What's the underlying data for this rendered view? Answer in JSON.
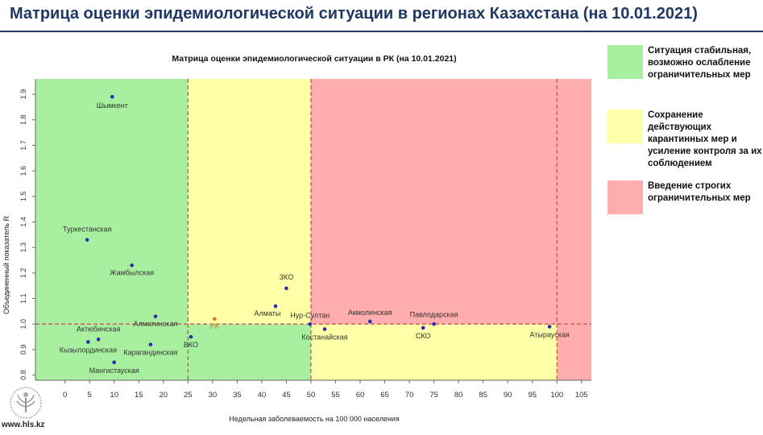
{
  "slide": {
    "title": "Матрица оценки эпидемиологической ситуации в регионах Казахстана (на 10.01.2021)",
    "website": "www.hls.kz"
  },
  "legend": [
    {
      "color": "#a8f0a0",
      "text": "Ситуация стабильная,\nвозможно ослабление\nограничительных мер"
    },
    {
      "color": "#ffffa8",
      "text": "Сохранение действующих\nкарантинных мер и\nусиление контроля за их\nсоблюдением"
    },
    {
      "color": "#ffadad",
      "text": "Введение строгих\nограничительных мер"
    }
  ],
  "colors": {
    "green_zone": "#a8f0a0",
    "yellow_zone": "#ffffa8",
    "red_zone": "#ffadad",
    "point": "#2b2bb0",
    "rk_point": "#e07020",
    "threshold_line": "#c0504d",
    "title": "#1f3864"
  },
  "chart_data": {
    "type": "scatter",
    "title": "Матрица оценки эпидемиологической ситуации в РК (на 10.01.2021)",
    "xlabel": "Недельная заболеваемость на 100 000 населения",
    "ylabel": "Объединенный показатель R",
    "xlim": [
      -6,
      107
    ],
    "ylim": [
      0.78,
      1.96
    ],
    "xticks": [
      0,
      5,
      10,
      15,
      20,
      25,
      30,
      35,
      40,
      45,
      50,
      55,
      60,
      65,
      70,
      75,
      80,
      85,
      90,
      95,
      100,
      105
    ],
    "yticks": [
      "0.8",
      "0.9",
      "1.0",
      "1.1",
      "1.2",
      "1.3",
      "1.4",
      "1.5",
      "1.6",
      "1.7",
      "1.8",
      "1.9"
    ],
    "zones": [
      {
        "name": "green",
        "x": [
          -6,
          25
        ],
        "y": [
          0.78,
          1.96
        ]
      },
      {
        "name": "green",
        "x": [
          25,
          50
        ],
        "y": [
          0.78,
          1.0
        ]
      },
      {
        "name": "yellow",
        "x": [
          25,
          50
        ],
        "y": [
          1.0,
          1.96
        ]
      },
      {
        "name": "yellow",
        "x": [
          50,
          100
        ],
        "y": [
          0.78,
          1.0
        ]
      },
      {
        "name": "red",
        "x": [
          50,
          107
        ],
        "y": [
          1.0,
          1.96
        ]
      },
      {
        "name": "red",
        "x": [
          100,
          107
        ],
        "y": [
          0.78,
          1.0
        ]
      }
    ],
    "thresholds": {
      "x": [
        25,
        50,
        100
      ],
      "y": 1.0
    },
    "points": [
      {
        "label": "Шымкент",
        "x": 9.6,
        "y": 1.89
      },
      {
        "label": "Туркестанская",
        "x": 4.5,
        "y": 1.33
      },
      {
        "label": "Жамбылская",
        "x": 13.6,
        "y": 1.23
      },
      {
        "label": "Алматинская",
        "x": 18.4,
        "y": 1.03
      },
      {
        "label": "Актюбинская",
        "x": 6.8,
        "y": 0.94
      },
      {
        "label": "Кызылординская",
        "x": 4.7,
        "y": 0.93
      },
      {
        "label": "Карагандинская",
        "x": 17.4,
        "y": 0.92
      },
      {
        "label": "Мангистауская",
        "x": 10.0,
        "y": 0.85
      },
      {
        "label": "ВКО",
        "x": 25.6,
        "y": 0.95
      },
      {
        "label": "РК",
        "x": 30.4,
        "y": 1.02,
        "highlight": true
      },
      {
        "label": "ЗКО",
        "x": 45.0,
        "y": 1.14
      },
      {
        "label": "Алматы",
        "x": 42.8,
        "y": 1.07
      },
      {
        "label": "Нур-Султан",
        "x": 49.8,
        "y": 1.0
      },
      {
        "label": "Костанайская",
        "x": 52.8,
        "y": 0.98
      },
      {
        "label": "Акмолинская",
        "x": 62.0,
        "y": 1.01
      },
      {
        "label": "СКО",
        "x": 72.8,
        "y": 0.985
      },
      {
        "label": "Павлодарская",
        "x": 75.0,
        "y": 1.0
      },
      {
        "label": "Атырауская",
        "x": 98.5,
        "y": 0.99
      }
    ]
  }
}
